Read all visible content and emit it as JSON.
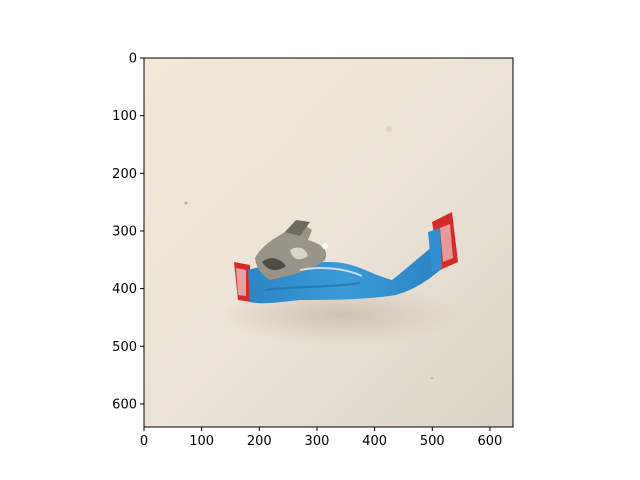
{
  "figure": {
    "image_subject": "crumpled blue and red snack wrapper on a beige surface",
    "axes": {
      "x_ticks": [
        "0",
        "100",
        "200",
        "300",
        "400",
        "500",
        "600"
      ],
      "y_ticks": [
        "0",
        "100",
        "200",
        "300",
        "400",
        "500",
        "600"
      ],
      "x_tick_values": [
        0,
        100,
        200,
        300,
        400,
        500,
        600
      ],
      "y_tick_values": [
        0,
        100,
        200,
        300,
        400,
        500,
        600
      ],
      "xlim": [
        0,
        640
      ],
      "ylim": [
        640,
        0
      ]
    },
    "colors": {
      "background_light": "#f3e7d8",
      "background_mid": "#e7ddd1",
      "wrapper_blue": "#2f8fcf",
      "wrapper_red": "#d42a2a",
      "wrapper_silver": "#9a9488",
      "shadow": "#cfc3b5"
    }
  }
}
